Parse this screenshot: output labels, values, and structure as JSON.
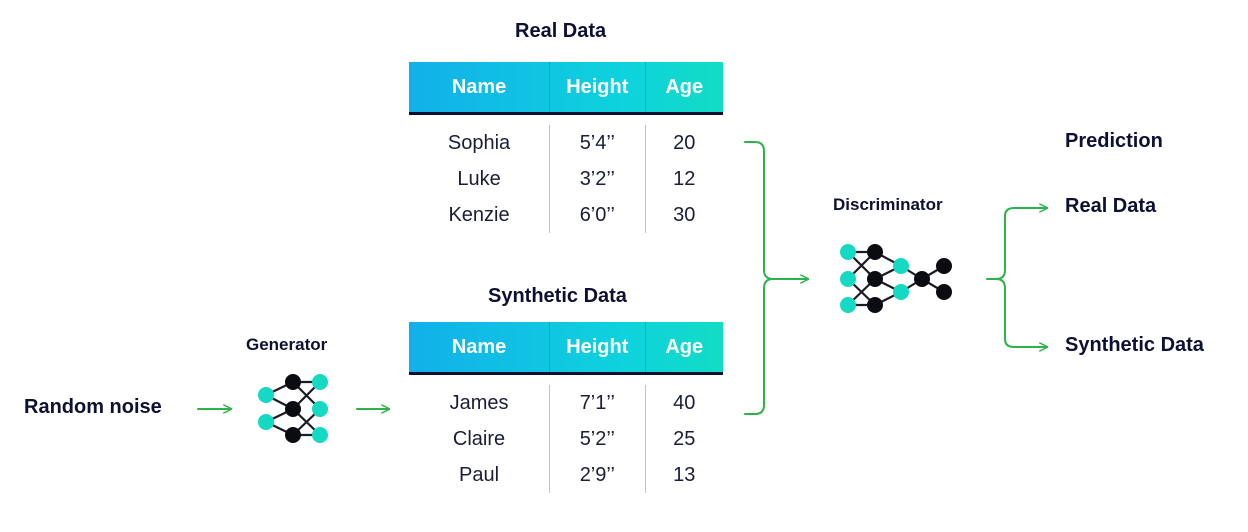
{
  "labels": {
    "real_title": "Real Data",
    "synthetic_title": "Synthetic Data",
    "generator": "Generator",
    "discriminator": "Discriminator",
    "random_noise": "Random noise",
    "prediction": "Prediction",
    "pred_real": "Real Data",
    "pred_synthetic": "Synthetic Data"
  },
  "real_table": {
    "headers": [
      "Name",
      "Height",
      "Age"
    ],
    "rows": [
      [
        "Sophia",
        "5’4’’",
        "20"
      ],
      [
        "Luke",
        "3’2’’",
        "12"
      ],
      [
        "Kenzie",
        "6’0’’",
        "30"
      ]
    ]
  },
  "synthetic_table": {
    "headers": [
      "Name",
      "Height",
      "Age"
    ],
    "rows": [
      [
        "James",
        "7’1’’",
        "40"
      ],
      [
        "Claire",
        "5’2’’",
        "25"
      ],
      [
        "Paul",
        "2’9’’",
        "13"
      ]
    ]
  },
  "colors": {
    "arrow": "#2eb24a",
    "node_teal": "#16d9c3",
    "node_dark": "#0b0b12",
    "text": "#0d1033"
  },
  "icons": [
    "generator-network-icon",
    "discriminator-network-icon",
    "arrow-right-icon",
    "bracket-merge-icon",
    "bracket-split-icon"
  ]
}
